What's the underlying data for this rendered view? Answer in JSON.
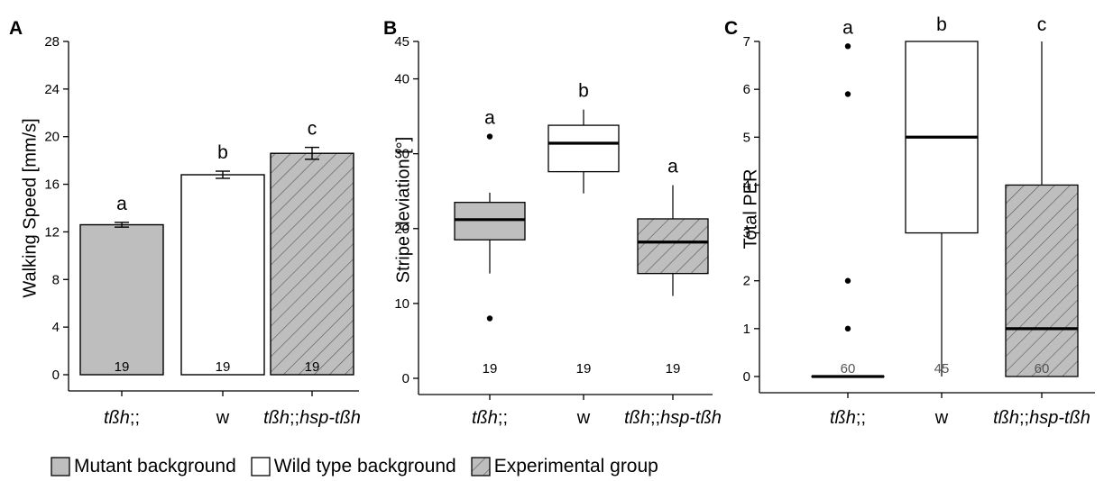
{
  "panels": [
    {
      "letter": "A"
    },
    {
      "letter": "B"
    },
    {
      "letter": "C"
    }
  ],
  "groups": [
    "tßh;;",
    "w",
    "tßh;;hsp-tßh"
  ],
  "legend": [
    {
      "label": "Mutant background",
      "fill": "#bebebe",
      "pattern": "solid"
    },
    {
      "label": "Wild type background",
      "fill": "#ffffff",
      "pattern": "solid"
    },
    {
      "label": "Experimental group",
      "fill": "#bebebe",
      "pattern": "hatch"
    }
  ],
  "colors": {
    "mutant": "#bebebe",
    "wildtype": "#ffffff",
    "experimental": "#bebebe",
    "line": "#000000",
    "count_text": "#333333"
  },
  "chart_data": [
    {
      "panel": "A",
      "type": "bar",
      "ylabel": "Walking Speed [mm/s]",
      "ylim": [
        0,
        28
      ],
      "yticks": [
        0,
        4,
        8,
        12,
        16,
        20,
        24,
        28
      ],
      "categories": [
        "tßh;;",
        "w",
        "tßh;;hsp-tßh"
      ],
      "values": [
        12.6,
        16.8,
        18.6
      ],
      "errors": [
        0.2,
        0.3,
        0.5
      ],
      "significance": [
        "a",
        "b",
        "c"
      ],
      "n": [
        "19",
        "19",
        "19"
      ]
    },
    {
      "panel": "B",
      "type": "boxplot",
      "ylabel": "Stripe deviation [°]",
      "ylim": [
        0,
        45
      ],
      "yticks": [
        0,
        10,
        20,
        30,
        40,
        45
      ],
      "categories": [
        "tßh;;",
        "w",
        "tßh;;hsp-tßh"
      ],
      "boxes": [
        {
          "whisker_low": 14,
          "q1": 18.5,
          "median": 21.2,
          "q3": 23.5,
          "whisker_high": 24.8,
          "outliers": [
            8,
            32.3
          ]
        },
        {
          "whisker_low": 24.7,
          "q1": 27.6,
          "median": 31.4,
          "q3": 33.8,
          "whisker_high": 35.9,
          "outliers": []
        },
        {
          "whisker_low": 11,
          "q1": 14,
          "median": 18.2,
          "q3": 21.3,
          "whisker_high": 25.8,
          "outliers": []
        }
      ],
      "significance": [
        "a",
        "b",
        "a"
      ],
      "n": [
        "19",
        "19",
        "19"
      ]
    },
    {
      "panel": "C",
      "type": "boxplot",
      "ylabel": "Total PER",
      "ylim": [
        0,
        7
      ],
      "yticks": [
        0,
        1,
        2,
        3,
        4,
        5,
        6,
        7
      ],
      "categories": [
        "tßh;;",
        "w",
        "tßh;;hsp-tßh"
      ],
      "boxes": [
        {
          "whisker_low": 0,
          "q1": 0,
          "median": 0,
          "q3": 0,
          "whisker_high": 0,
          "outliers": [
            1,
            2,
            5.9,
            6.9
          ]
        },
        {
          "whisker_low": 0,
          "q1": 3,
          "median": 5,
          "q3": 7,
          "whisker_high": 7,
          "outliers": []
        },
        {
          "whisker_low": 0,
          "q1": 0,
          "median": 1,
          "q3": 4,
          "whisker_high": 7,
          "outliers": []
        }
      ],
      "significance": [
        "a",
        "b",
        "c"
      ],
      "n": [
        "60",
        "45",
        "60"
      ]
    }
  ]
}
